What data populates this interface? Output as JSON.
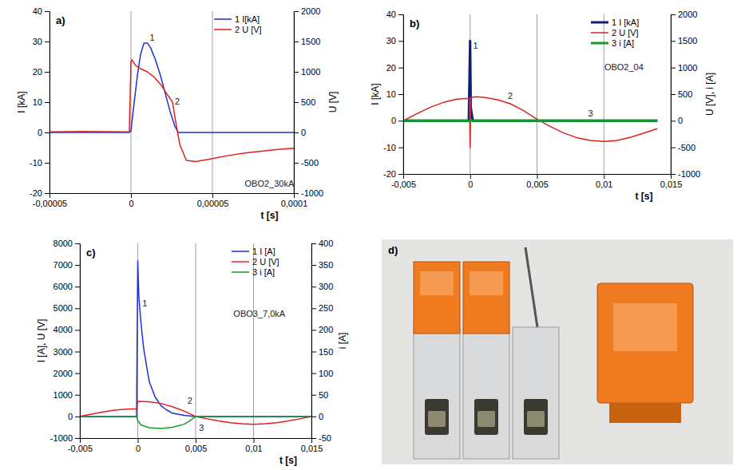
{
  "chart_data": [
    {
      "type": "line",
      "title": "a)",
      "xlabel": "t [s]",
      "ylabel": "I [kA]",
      "y2label": "U [V]",
      "xlim": [
        -5e-05,
        0.0001
      ],
      "xticks": [
        {
          "value": -5e-05,
          "label": "-0,00005"
        },
        0,
        {
          "value": 5e-05,
          "label": "0,00005"
        },
        {
          "value": 0.0001,
          "label": "0,0001"
        }
      ],
      "ylim": [
        -20,
        40
      ],
      "yticks": [
        -20,
        -10,
        0,
        10,
        20,
        30,
        40
      ],
      "y2lim": [
        -1000,
        2000
      ],
      "y2ticks": [
        -1000,
        -500,
        0,
        500,
        1000,
        1500,
        2000
      ],
      "grid": "x",
      "legend": "upper right",
      "series": [
        {
          "name": "1 I[kA]",
          "color": "#1f2fd0",
          "line_style": "solid",
          "x": [
            -5e-05,
            -2e-05,
            -1e-06,
            0,
            2e-06,
            4e-06,
            6e-06,
            8e-06,
            1e-05,
            1.2e-05,
            1.5e-05,
            1.8e-05,
            2.1e-05,
            2.4e-05,
            2.7e-05,
            2.9e-05,
            5e-05,
            0.0001
          ],
          "values": [
            0,
            0,
            0,
            0.5,
            10,
            19,
            26,
            29.5,
            29.5,
            28,
            24,
            19,
            13,
            7,
            2,
            0,
            0,
            0
          ]
        },
        {
          "name": "2 U [V]",
          "color": "#e0201b",
          "axis": "y2",
          "line_style": "solid",
          "x": [
            -5e-05,
            -3e-05,
            -1e-06,
            0,
            5e-07,
            3e-06,
            6e-06,
            1e-05,
            1.4e-05,
            1.8e-05,
            2.1e-05,
            2.4e-05,
            2.55e-05,
            2.7e-05,
            3e-05,
            3.4e-05,
            4e-05,
            5e-05,
            6e-05,
            7e-05,
            8e-05,
            9e-05,
            0.0001
          ],
          "values": [
            10,
            15,
            10,
            1150,
            1200,
            1100,
            1050,
            1000,
            920,
            800,
            680,
            560,
            500,
            250,
            -200,
            -460,
            -480,
            -430,
            -380,
            -340,
            -310,
            -280,
            -260
          ]
        }
      ],
      "annotations": [
        {
          "text": "1",
          "x": 1.3e-05,
          "y": 31
        },
        {
          "text": "2",
          "x": 2.85e-05,
          "y": 10
        },
        {
          "text": "OBO2_30kA",
          "x": 8.5e-05,
          "y": -17
        }
      ]
    },
    {
      "type": "line",
      "title": "b)",
      "xlabel": "t [s]",
      "ylabel": "I [kA]",
      "y2label": "U [V], i [A]",
      "xlim": [
        -0.005,
        0.015
      ],
      "xticks": [
        {
          "value": -0.005,
          "label": "-0,005"
        },
        0,
        {
          "value": 0.005,
          "label": "0,005"
        },
        {
          "value": 0.01,
          "label": "0,01"
        },
        {
          "value": 0.015,
          "label": "0,015"
        }
      ],
      "ylim": [
        -20,
        40
      ],
      "yticks": [
        -20,
        -10,
        0,
        10,
        20,
        30,
        40
      ],
      "y2lim": [
        -1000,
        2000
      ],
      "y2ticks": [
        -1000,
        -500,
        0,
        500,
        1000,
        1500,
        2000
      ],
      "grid": "x",
      "legend": "upper right",
      "series": [
        {
          "name": "1 I [kA]",
          "color": "#0b1f7a",
          "line_style": "bold",
          "x": [
            -0.005,
            -0.0001,
            0,
            5e-05,
            0.0002,
            0.014
          ],
          "values": [
            0,
            0,
            30,
            5,
            0,
            0
          ]
        },
        {
          "name": "2 U [V]",
          "color": "#e0201b",
          "axis": "y2",
          "line_style": "solid",
          "x": [
            -0.005,
            -0.004,
            -0.003,
            -0.002,
            -0.001,
            -5e-05,
            0,
            5e-05,
            0.0005,
            0.001,
            0.002,
            0.003,
            0.004,
            0.005,
            0.006,
            0.007,
            0.008,
            0.009,
            0.01,
            0.011,
            0.012,
            0.013,
            0.014
          ],
          "values": [
            0,
            130,
            250,
            345,
            405,
            420,
            -500,
            440,
            450,
            440,
            400,
            320,
            190,
            30,
            -110,
            -230,
            -320,
            -370,
            -390,
            -370,
            -310,
            -230,
            -150
          ]
        },
        {
          "name": "3 i [A]",
          "color": "#139a2a",
          "axis": "y2",
          "line_style": "bold",
          "x": [
            -0.005,
            0.014
          ],
          "values": [
            0,
            0
          ]
        }
      ],
      "annotations": [
        {
          "text": "1",
          "x": 0.0004,
          "y": 28
        },
        {
          "text": "2",
          "x": 0.003,
          "y": 9
        },
        {
          "text": "3",
          "x": 0.009,
          "y": 2.5
        },
        {
          "text": "OBO2_04",
          "x": 0.0115,
          "y": 20
        }
      ]
    },
    {
      "type": "line",
      "title": "c)",
      "xlabel": "t [s]",
      "ylabel": "I [A], U [V]",
      "y2label": "i [A]",
      "xlim": [
        -0.005,
        0.015
      ],
      "xticks": [
        {
          "value": -0.005,
          "label": "-0,005"
        },
        0,
        {
          "value": 0.005,
          "label": "0,005"
        },
        {
          "value": 0.01,
          "label": "0,01"
        },
        {
          "value": 0.015,
          "label": "0,015"
        }
      ],
      "ylim": [
        -1000,
        8000
      ],
      "yticks": [
        -1000,
        0,
        1000,
        2000,
        3000,
        4000,
        5000,
        6000,
        7000,
        8000
      ],
      "y2lim": [
        -50,
        400
      ],
      "y2ticks": [
        -50,
        0,
        50,
        100,
        150,
        200,
        250,
        300,
        350,
        400
      ],
      "grid": "x",
      "legend": "upper right",
      "series": [
        {
          "name": "1 I [A]",
          "color": "#1f2fd0",
          "line_style": "solid",
          "x": [
            -0.005,
            -0.0001,
            0,
            0.0001,
            0.0003,
            0.0005,
            0.0008,
            0.001,
            0.0015,
            0.002,
            0.0025,
            0.003,
            0.004,
            0.005,
            0.015
          ],
          "values": [
            0,
            0,
            7200,
            5500,
            4200,
            3200,
            2200,
            1600,
            900,
            500,
            300,
            150,
            50,
            0,
            0
          ]
        },
        {
          "name": "2 U [V]",
          "color": "#e0201b",
          "line_style": "solid",
          "x": [
            -0.005,
            -0.004,
            -0.003,
            -0.002,
            -0.001,
            -0.0001,
            0,
            0.001,
            0.002,
            0.003,
            0.004,
            0.005,
            0.006,
            0.007,
            0.008,
            0.009,
            0.01,
            0.011,
            0.012,
            0.013,
            0.014,
            0.015
          ],
          "values": [
            0,
            110,
            210,
            290,
            340,
            360,
            700,
            680,
            600,
            450,
            250,
            0,
            -110,
            -210,
            -290,
            -340,
            -360,
            -340,
            -290,
            -210,
            -110,
            0
          ]
        },
        {
          "name": "3 i [A]",
          "color": "#139a2a",
          "axis": "y2",
          "line_style": "solid",
          "x": [
            -0.005,
            -0.0001,
            0,
            0.0003,
            0.001,
            0.002,
            0.003,
            0.004,
            0.0045,
            0.005,
            0.015
          ],
          "values": [
            0,
            0,
            -10,
            -20,
            -26,
            -28,
            -25,
            -18,
            -10,
            0,
            0
          ]
        }
      ],
      "annotations": [
        {
          "text": "1",
          "x": 0.0006,
          "y": 5200
        },
        {
          "text": "2",
          "x": 0.0045,
          "y": 700
        },
        {
          "text": "3",
          "x": 0.0055,
          "y": -550
        },
        {
          "text": "OBO3_7,0kA",
          "x": 0.0105,
          "y": 4700
        }
      ]
    },
    {
      "type": "image",
      "title": "d)"
    }
  ]
}
